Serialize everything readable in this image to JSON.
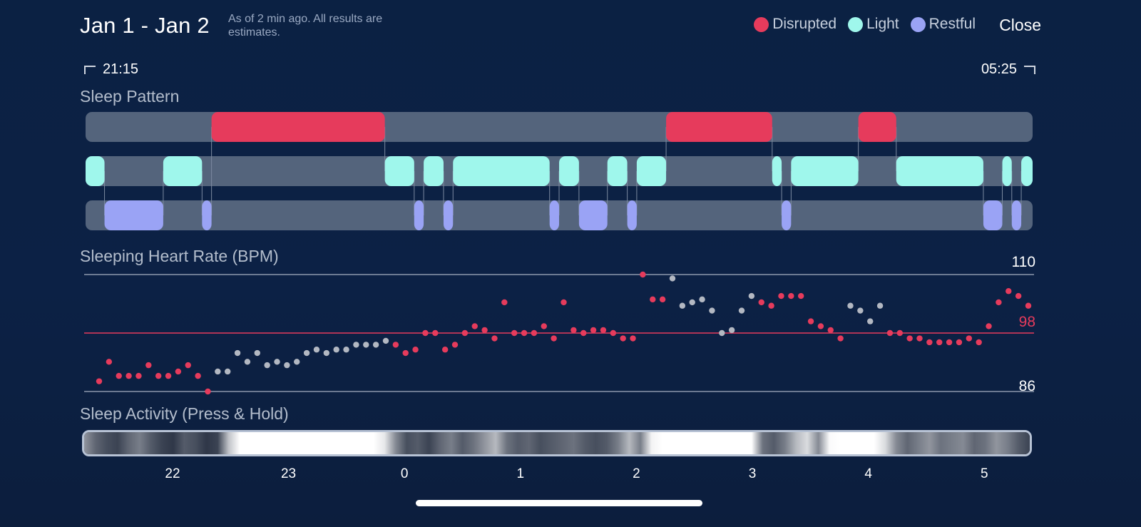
{
  "header": {
    "title": "Jan 1 - Jan 2",
    "subtitle": "As of 2 min ago. All results are estimates.",
    "close_label": "Close"
  },
  "legend": [
    {
      "label": "Disrupted",
      "color": "#e63b5c"
    },
    {
      "label": "Light",
      "color": "#9ff7ec"
    },
    {
      "label": "Restful",
      "color": "#9aa3f5"
    }
  ],
  "time_range": {
    "start": "21:15",
    "end": "05:25"
  },
  "sleep_pattern": {
    "label": "Sleep Pattern",
    "track_color": "#54647c",
    "rows": {
      "disrupted": [
        [
          0.133,
          0.316
        ],
        [
          0.613,
          0.725
        ],
        [
          0.816,
          0.856
        ]
      ],
      "light": [
        [
          0.0,
          0.02
        ],
        [
          0.082,
          0.123
        ],
        [
          0.316,
          0.347
        ],
        [
          0.357,
          0.378
        ],
        [
          0.388,
          0.49
        ],
        [
          0.5,
          0.521
        ],
        [
          0.551,
          0.572
        ],
        [
          0.582,
          0.613
        ],
        [
          0.725,
          0.735
        ],
        [
          0.745,
          0.816
        ],
        [
          0.856,
          0.948
        ],
        [
          0.968,
          0.978
        ],
        [
          0.988,
          1.0
        ]
      ],
      "restful": [
        [
          0.02,
          0.082
        ],
        [
          0.123,
          0.133
        ],
        [
          0.347,
          0.357
        ],
        [
          0.378,
          0.388
        ],
        [
          0.49,
          0.5
        ],
        [
          0.521,
          0.551
        ],
        [
          0.572,
          0.582
        ],
        [
          0.735,
          0.745
        ],
        [
          0.948,
          0.968
        ],
        [
          0.978,
          0.988
        ]
      ]
    }
  },
  "heart_rate": {
    "label": "Sleeping Heart Rate (BPM)",
    "max": 110,
    "min": 86,
    "avg": 98,
    "max_label": "110",
    "min_label": "86",
    "avg_label": "98",
    "points": [
      {
        "v": 88.1,
        "c": "r"
      },
      {
        "v": 92.1,
        "c": "r"
      },
      {
        "v": 89.2,
        "c": "r"
      },
      {
        "v": 89.2,
        "c": "r"
      },
      {
        "v": 89.2,
        "c": "r"
      },
      {
        "v": 91.4,
        "c": "r"
      },
      {
        "v": 89.2,
        "c": "r"
      },
      {
        "v": 89.2,
        "c": "r"
      },
      {
        "v": 90.1,
        "c": "r"
      },
      {
        "v": 91.4,
        "c": "r"
      },
      {
        "v": 89.2,
        "c": "r"
      },
      {
        "v": 86.0,
        "c": "r"
      },
      {
        "v": 90.1,
        "c": "g"
      },
      {
        "v": 90.1,
        "c": "g"
      },
      {
        "v": 93.9,
        "c": "g"
      },
      {
        "v": 92.1,
        "c": "g"
      },
      {
        "v": 93.9,
        "c": "g"
      },
      {
        "v": 91.4,
        "c": "g"
      },
      {
        "v": 92.1,
        "c": "g"
      },
      {
        "v": 91.4,
        "c": "g"
      },
      {
        "v": 92.1,
        "c": "g"
      },
      {
        "v": 93.9,
        "c": "g"
      },
      {
        "v": 94.6,
        "c": "g"
      },
      {
        "v": 93.9,
        "c": "g"
      },
      {
        "v": 94.6,
        "c": "g"
      },
      {
        "v": 94.6,
        "c": "g"
      },
      {
        "v": 95.6,
        "c": "g"
      },
      {
        "v": 95.6,
        "c": "g"
      },
      {
        "v": 95.6,
        "c": "g"
      },
      {
        "v": 96.4,
        "c": "g"
      },
      {
        "v": 95.6,
        "c": "r"
      },
      {
        "v": 93.9,
        "c": "r"
      },
      {
        "v": 94.6,
        "c": "r"
      },
      {
        "v": 98.0,
        "c": "r"
      },
      {
        "v": 98.0,
        "c": "r"
      },
      {
        "v": 94.6,
        "c": "r"
      },
      {
        "v": 95.6,
        "c": "r"
      },
      {
        "v": 98.0,
        "c": "r"
      },
      {
        "v": 99.4,
        "c": "r"
      },
      {
        "v": 98.6,
        "c": "r"
      },
      {
        "v": 96.9,
        "c": "r"
      },
      {
        "v": 104.3,
        "c": "r"
      },
      {
        "v": 98.0,
        "c": "r"
      },
      {
        "v": 98.0,
        "c": "r"
      },
      {
        "v": 98.0,
        "c": "r"
      },
      {
        "v": 99.4,
        "c": "r"
      },
      {
        "v": 96.9,
        "c": "r"
      },
      {
        "v": 104.3,
        "c": "r"
      },
      {
        "v": 98.6,
        "c": "r"
      },
      {
        "v": 98.0,
        "c": "r"
      },
      {
        "v": 98.6,
        "c": "r"
      },
      {
        "v": 98.6,
        "c": "r"
      },
      {
        "v": 98.0,
        "c": "r"
      },
      {
        "v": 96.9,
        "c": "r"
      },
      {
        "v": 96.9,
        "c": "r"
      },
      {
        "v": 110.0,
        "c": "r"
      },
      {
        "v": 104.9,
        "c": "r"
      },
      {
        "v": 104.9,
        "c": "r"
      },
      {
        "v": 109.2,
        "c": "g"
      },
      {
        "v": 103.6,
        "c": "g"
      },
      {
        "v": 104.3,
        "c": "g"
      },
      {
        "v": 104.9,
        "c": "g"
      },
      {
        "v": 102.6,
        "c": "g"
      },
      {
        "v": 98.0,
        "c": "g"
      },
      {
        "v": 98.6,
        "c": "g"
      },
      {
        "v": 102.6,
        "c": "g"
      },
      {
        "v": 105.6,
        "c": "g"
      },
      {
        "v": 104.3,
        "c": "r"
      },
      {
        "v": 103.6,
        "c": "r"
      },
      {
        "v": 105.6,
        "c": "r"
      },
      {
        "v": 105.6,
        "c": "r"
      },
      {
        "v": 105.6,
        "c": "r"
      },
      {
        "v": 100.4,
        "c": "r"
      },
      {
        "v": 99.4,
        "c": "r"
      },
      {
        "v": 98.6,
        "c": "r"
      },
      {
        "v": 96.9,
        "c": "r"
      },
      {
        "v": 103.6,
        "c": "g"
      },
      {
        "v": 102.6,
        "c": "g"
      },
      {
        "v": 100.4,
        "c": "g"
      },
      {
        "v": 103.6,
        "c": "g"
      },
      {
        "v": 98.0,
        "c": "r"
      },
      {
        "v": 98.0,
        "c": "r"
      },
      {
        "v": 96.9,
        "c": "r"
      },
      {
        "v": 96.9,
        "c": "r"
      },
      {
        "v": 96.1,
        "c": "r"
      },
      {
        "v": 96.1,
        "c": "r"
      },
      {
        "v": 96.1,
        "c": "r"
      },
      {
        "v": 96.1,
        "c": "r"
      },
      {
        "v": 96.9,
        "c": "r"
      },
      {
        "v": 96.1,
        "c": "r"
      },
      {
        "v": 99.4,
        "c": "r"
      },
      {
        "v": 104.3,
        "c": "r"
      },
      {
        "v": 106.6,
        "c": "r"
      },
      {
        "v": 105.6,
        "c": "r"
      },
      {
        "v": 103.6,
        "c": "r"
      }
    ],
    "colors": {
      "r": "#e63b5c",
      "g": "#b3b8c2"
    }
  },
  "sleep_activity": {
    "label": "Sleep Activity (Press & Hold)",
    "levels": [
      0.55,
      0.35,
      0.25,
      0.2,
      0.35,
      0.45,
      0.3,
      0.2,
      0.15,
      0.3,
      0.25,
      0.15,
      0.2,
      0.75,
      1,
      1,
      1,
      1,
      1,
      1,
      1,
      1,
      1,
      1,
      1,
      1,
      1,
      0.9,
      0.5,
      0.25,
      0.3,
      0.2,
      0.35,
      0.45,
      0.3,
      0.4,
      0.55,
      0.7,
      0.4,
      0.3,
      0.35,
      0.25,
      0.3,
      0.35,
      0.4,
      0.3,
      0.25,
      0.3,
      0.45,
      0.7,
      0.45,
      0.95,
      1,
      1,
      1,
      1,
      1,
      1,
      1,
      1,
      1,
      0.4,
      0.3,
      0.45,
      0.7,
      0.85,
      0.5,
      0.98,
      1,
      1,
      1,
      1,
      0.85,
      0.5,
      0.35,
      0.45,
      0.55,
      0.4,
      0.45,
      0.5,
      0.35,
      0.4,
      0.55,
      0.45,
      0.3,
      0.2
    ]
  },
  "x_axis": {
    "ticks": [
      {
        "label": "22",
        "hours_from_start": 0.75
      },
      {
        "label": "23",
        "hours_from_start": 1.75
      },
      {
        "label": "0",
        "hours_from_start": 2.75
      },
      {
        "label": "1",
        "hours_from_start": 3.75
      },
      {
        "label": "2",
        "hours_from_start": 4.75
      },
      {
        "label": "3",
        "hours_from_start": 5.75
      },
      {
        "label": "4",
        "hours_from_start": 6.75
      },
      {
        "label": "5",
        "hours_from_start": 7.75
      }
    ],
    "total_hours": 8.1667
  }
}
